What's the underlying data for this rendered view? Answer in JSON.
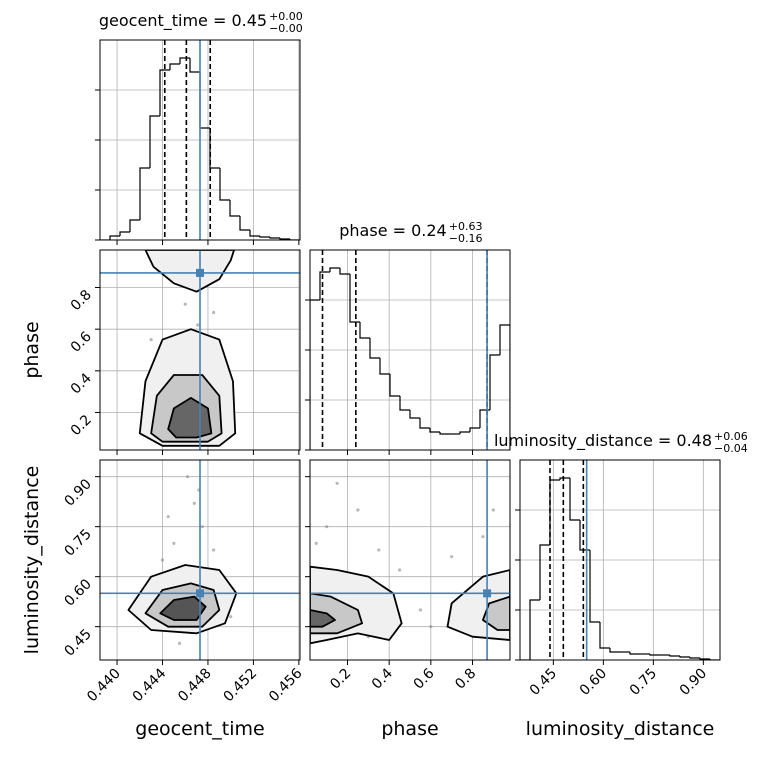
{
  "chart_data": [
    {
      "type": "histogram",
      "title": {
        "text": "geocent_time = 0.45",
        "upper": "+0.00",
        "lower": "−0.00"
      },
      "bins": [
        0.4385,
        0.43938,
        0.44026,
        0.44114,
        0.44202,
        0.4429,
        0.44378,
        0.44466,
        0.44554,
        0.44642,
        0.4473,
        0.44818,
        0.44906,
        0.44994,
        0.45082,
        0.4517,
        0.45258,
        0.45346,
        0.45434,
        0.45522,
        0.4561
      ],
      "counts": [
        0,
        4,
        8,
        20,
        72,
        124,
        170,
        176,
        182,
        168,
        112,
        72,
        40,
        24,
        10,
        4,
        3,
        2,
        1,
        0
      ],
      "xlim": [
        0.4385,
        0.4561
      ],
      "xticks": [
        0.44,
        0.444,
        0.448,
        0.452,
        0.456
      ],
      "ylim": [
        0,
        200
      ],
      "yticks": [
        0,
        50,
        100,
        150
      ],
      "quantiles": [
        0.4442,
        0.4461,
        0.4482
      ],
      "truth": 0.4473,
      "color": "#000000",
      "truth_color": "#4682b4",
      "grid": true
    },
    {
      "type": "contour",
      "ylabel": "phase",
      "xlim": [
        0.4385,
        0.4561
      ],
      "xticks": [
        0.44,
        0.444,
        0.448,
        0.452,
        0.456
      ],
      "ylim": [
        0.02,
        0.98
      ],
      "yticks": [
        0.2,
        0.4,
        0.6,
        0.8
      ],
      "contours": [
        {
          "x": [
            0.442,
            0.4425,
            0.444,
            0.4465,
            0.449,
            0.4502,
            0.4504,
            0.449,
            0.444
          ],
          "y": [
            0.1,
            0.35,
            0.55,
            0.6,
            0.55,
            0.35,
            0.1,
            0.04,
            0.04
          ]
        },
        {
          "x": [
            0.443,
            0.4435,
            0.445,
            0.4475,
            0.449,
            0.4492,
            0.448,
            0.444
          ],
          "y": [
            0.1,
            0.28,
            0.38,
            0.38,
            0.28,
            0.1,
            0.06,
            0.06
          ]
        },
        {
          "x": [
            0.4445,
            0.445,
            0.4465,
            0.448,
            0.4483,
            0.447,
            0.4452
          ],
          "y": [
            0.12,
            0.22,
            0.27,
            0.22,
            0.1,
            0.08,
            0.08
          ]
        },
        {
          "x": [
            0.4425,
            0.4432,
            0.445,
            0.447,
            0.449,
            0.45,
            0.4503
          ],
          "y": [
            0.98,
            0.9,
            0.82,
            0.78,
            0.84,
            0.93,
            0.98
          ]
        }
      ],
      "contour_fills": [
        "#f0f0f0",
        "#c8c8c8",
        "#666666",
        "#f0f0f0"
      ],
      "points": {
        "x": [
          0.4452,
          0.4471,
          0.4438,
          0.4489,
          0.446,
          0.4445,
          0.4495,
          0.4467,
          0.443,
          0.4478,
          0.4458,
          0.4485
        ],
        "y": [
          0.45,
          0.62,
          0.25,
          0.3,
          0.72,
          0.88,
          0.15,
          0.4,
          0.55,
          0.93,
          0.08,
          0.68
        ]
      },
      "truth": [
        0.4473,
        0.87
      ],
      "truth_color": "#4682b4",
      "grid": true
    },
    {
      "type": "histogram",
      "title": {
        "text": "phase = 0.24",
        "upper": "+0.63",
        "lower": "−0.16"
      },
      "bins": [
        0.02,
        0.068,
        0.116,
        0.164,
        0.212,
        0.26,
        0.308,
        0.356,
        0.404,
        0.452,
        0.5,
        0.548,
        0.596,
        0.644,
        0.692,
        0.74,
        0.788,
        0.836,
        0.884,
        0.932,
        0.98
      ],
      "counts": [
        150,
        178,
        182,
        176,
        128,
        112,
        92,
        76,
        54,
        40,
        32,
        22,
        18,
        16,
        16,
        18,
        22,
        40,
        95,
        125
      ],
      "xlim": [
        0.02,
        0.98
      ],
      "xticks": [
        0.2,
        0.4,
        0.6,
        0.8
      ],
      "ylim": [
        0,
        200
      ],
      "yticks": [
        0,
        50,
        100,
        150
      ],
      "quantiles": [
        0.08,
        0.24,
        0.87
      ],
      "truth": 0.87,
      "color": "#000000",
      "truth_color": "#4682b4",
      "grid": true
    },
    {
      "type": "contour",
      "xlabel": "geocent_time",
      "ylabel": "luminosity_distance",
      "xlim": [
        0.4385,
        0.4561
      ],
      "xticks": [
        {
          "value": 0.44,
          "label": "0.440"
        },
        0.444,
        0.448,
        0.452,
        0.456
      ],
      "ylim": [
        0.35,
        0.95
      ],
      "yticks": [
        0.45,
        {
          "value": 0.6,
          "label": "0.60"
        },
        0.75,
        {
          "value": 0.9,
          "label": "0.90"
        }
      ],
      "contours": [
        {
          "x": [
            0.441,
            0.443,
            0.446,
            0.449,
            0.4505,
            0.4495,
            0.447,
            0.443
          ],
          "y": [
            0.5,
            0.6,
            0.635,
            0.62,
            0.55,
            0.46,
            0.43,
            0.44
          ]
        },
        {
          "x": [
            0.4425,
            0.444,
            0.4465,
            0.4485,
            0.449,
            0.4475,
            0.4445
          ],
          "y": [
            0.49,
            0.56,
            0.58,
            0.56,
            0.5,
            0.45,
            0.45
          ]
        },
        {
          "x": [
            0.4438,
            0.445,
            0.4468,
            0.4478,
            0.447,
            0.445
          ],
          "y": [
            0.49,
            0.53,
            0.54,
            0.51,
            0.47,
            0.47
          ]
        }
      ],
      "contour_fills": [
        "#f0f0f0",
        "#c8c8c8",
        "#555555"
      ],
      "points": {
        "x": [
          0.445,
          0.4468,
          0.444,
          0.4495,
          0.4462,
          0.4475,
          0.443,
          0.4485,
          0.4455,
          0.45,
          0.4445,
          0.4472
        ],
        "y": [
          0.7,
          0.82,
          0.65,
          0.58,
          0.9,
          0.75,
          0.52,
          0.68,
          0.4,
          0.48,
          0.78,
          0.86
        ]
      },
      "truth": [
        0.4473,
        0.55
      ],
      "truth_color": "#4682b4",
      "grid": true
    },
    {
      "type": "contour",
      "xlabel": "phase",
      "xlim": [
        0.02,
        0.98
      ],
      "xticks": [
        0.2,
        0.4,
        0.6,
        0.8
      ],
      "ylim": [
        0.35,
        0.95
      ],
      "yticks": [
        0.45,
        0.6,
        0.75,
        0.9
      ],
      "contours": [
        {
          "x": [
            0.02,
            0.15,
            0.3,
            0.42,
            0.46,
            0.4,
            0.25,
            0.1,
            0.02
          ],
          "y": [
            0.63,
            0.62,
            0.6,
            0.55,
            0.46,
            0.41,
            0.43,
            0.41,
            0.4
          ]
        },
        {
          "x": [
            0.02,
            0.12,
            0.25,
            0.27,
            0.15,
            0.02
          ],
          "y": [
            0.55,
            0.54,
            0.5,
            0.46,
            0.43,
            0.43
          ]
        },
        {
          "x": [
            0.02,
            0.1,
            0.14,
            0.08,
            0.02
          ],
          "y": [
            0.5,
            0.49,
            0.47,
            0.45,
            0.45
          ]
        },
        {
          "x": [
            0.98,
            0.85,
            0.7,
            0.68,
            0.8,
            0.98
          ],
          "y": [
            0.62,
            0.6,
            0.52,
            0.45,
            0.42,
            0.41
          ]
        },
        {
          "x": [
            0.98,
            0.88,
            0.85,
            0.92,
            0.98
          ],
          "y": [
            0.54,
            0.52,
            0.47,
            0.44,
            0.44
          ]
        }
      ],
      "contour_fills": [
        "#f0f0f0",
        "#c8c8c8",
        "#666666",
        "#f0f0f0",
        "#c8c8c8"
      ],
      "points": {
        "x": [
          0.1,
          0.25,
          0.35,
          0.55,
          0.7,
          0.85,
          0.15,
          0.45,
          0.6,
          0.9,
          0.3,
          0.05
        ],
        "y": [
          0.75,
          0.8,
          0.68,
          0.5,
          0.66,
          0.72,
          0.88,
          0.62,
          0.45,
          0.8,
          0.42,
          0.7
        ]
      },
      "truth": [
        0.87,
        0.55
      ],
      "truth_color": "#4682b4",
      "grid": true
    },
    {
      "type": "histogram",
      "xlabel": "luminosity_distance",
      "title": {
        "text": "luminosity_distance = 0.48",
        "upper": "+0.06",
        "lower": "−0.04"
      },
      "bins": [
        0.35,
        0.38,
        0.41,
        0.44,
        0.47,
        0.5,
        0.53,
        0.56,
        0.59,
        0.62,
        0.65,
        0.68,
        0.71,
        0.74,
        0.77,
        0.8,
        0.83,
        0.86,
        0.89,
        0.92,
        0.95
      ],
      "counts": [
        0,
        60,
        115,
        180,
        182,
        140,
        110,
        38,
        12,
        8,
        8,
        6,
        6,
        5,
        5,
        4,
        3,
        2,
        1,
        0
      ],
      "xlim": [
        0.35,
        0.95
      ],
      "xticks": [
        0.45,
        {
          "value": 0.6,
          "label": "0.60"
        },
        0.75,
        {
          "value": 0.9,
          "label": "0.90"
        }
      ],
      "ylim": [
        0,
        200
      ],
      "yticks": [
        0,
        50,
        100,
        150
      ],
      "quantiles": [
        0.44,
        0.48,
        0.54
      ],
      "truth": 0.55,
      "color": "#000000",
      "truth_color": "#4682b4",
      "grid": true
    }
  ]
}
